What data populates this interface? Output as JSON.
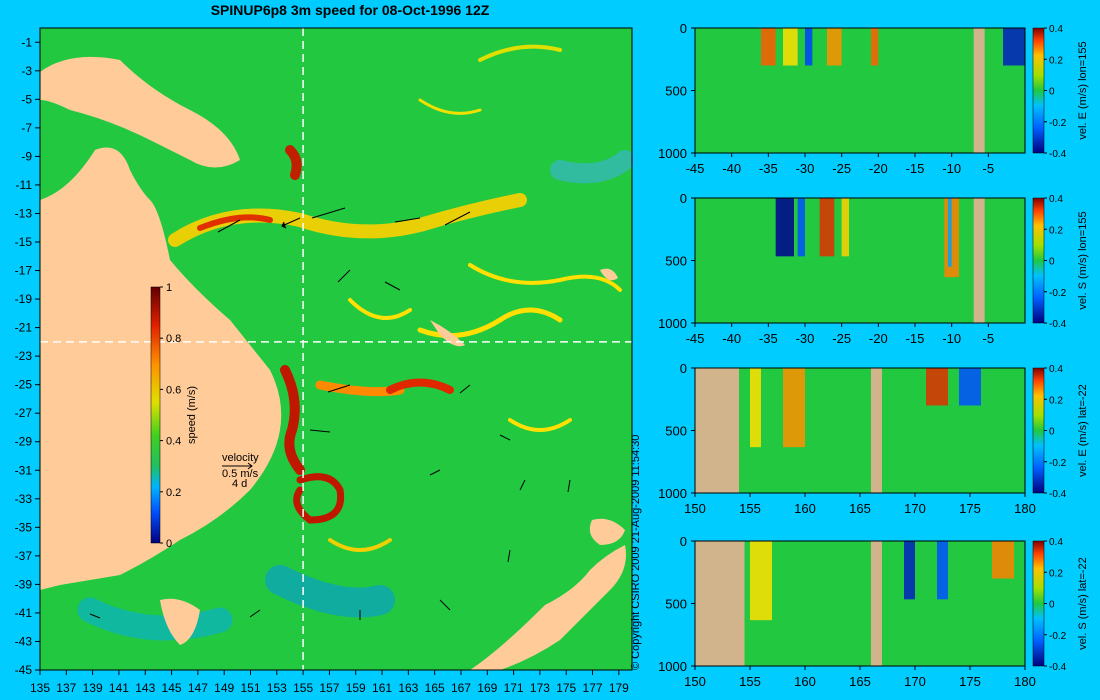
{
  "title": "SPINUP6p8 3m speed for 08-Oct-1996 12Z",
  "copyright": "© Copyright CSIRO 2009   21-Aug-2009 11:54:30",
  "colors": {
    "background": "#00ccff",
    "land": "#ffcc99",
    "section_land": "#d2b48c",
    "ocean_mid": "#22c840",
    "ref_lines": "#ffffff"
  },
  "chart_data": [
    {
      "type": "heatmap",
      "panel": "map",
      "title": "SPINUP6p8 3m speed for 08-Oct-1996 12Z",
      "x_ticks": [
        "135",
        "137",
        "139",
        "141",
        "143",
        "145",
        "147",
        "149",
        "151",
        "153",
        "155",
        "157",
        "159",
        "161",
        "163",
        "165",
        "167",
        "169",
        "171",
        "173",
        "175",
        "177",
        "179"
      ],
      "y_ticks": [
        "-1",
        "-3",
        "-5",
        "-7",
        "-9",
        "-11",
        "-13",
        "-15",
        "-17",
        "-19",
        "-21",
        "-23",
        "-25",
        "-27",
        "-29",
        "-31",
        "-33",
        "-35",
        "-37",
        "-39",
        "-41",
        "-43",
        "-45"
      ],
      "xlim": [
        135,
        180
      ],
      "ylim": [
        -45,
        0
      ],
      "colorbar": {
        "label": "speed (m/s)",
        "ticks": [
          "1",
          "0.8",
          "0.6",
          "0.4",
          "0.2",
          "0"
        ],
        "range": [
          0,
          1
        ]
      },
      "vector_key": {
        "title": "velocity",
        "speed": "0.5 m/s",
        "time": "4 d"
      },
      "reference_lines": {
        "lon": 155,
        "lat": -22
      }
    },
    {
      "type": "heatmap",
      "panel": "section",
      "x_ticks": [
        "-45",
        "-40",
        "-35",
        "-30",
        "-25",
        "-20",
        "-15",
        "-10",
        "-5"
      ],
      "xlim": [
        -45,
        0
      ],
      "y_ticks": [
        "0",
        "500",
        "1000"
      ],
      "ylim": [
        0,
        1000
      ],
      "colorbar": {
        "label": "vel. E (m/s) lon=155",
        "ticks": [
          "0.4",
          "0.2",
          "0",
          "-0.2",
          "-0.4"
        ],
        "range": [
          -0.4,
          0.4
        ]
      }
    },
    {
      "type": "heatmap",
      "panel": "section",
      "x_ticks": [
        "-45",
        "-40",
        "-35",
        "-30",
        "-25",
        "-20",
        "-15",
        "-10",
        "-5"
      ],
      "xlim": [
        -45,
        0
      ],
      "y_ticks": [
        "0",
        "500",
        "1000"
      ],
      "ylim": [
        0,
        1000
      ],
      "colorbar": {
        "label": "vel. S (m/s) lon=155",
        "ticks": [
          "0.4",
          "0.2",
          "0",
          "-0.2",
          "-0.4"
        ],
        "range": [
          -0.4,
          0.4
        ]
      }
    },
    {
      "type": "heatmap",
      "panel": "section",
      "x_ticks": [
        "150",
        "155",
        "160",
        "165",
        "170",
        "175",
        "180"
      ],
      "xlim": [
        150,
        180
      ],
      "y_ticks": [
        "0",
        "500",
        "1000"
      ],
      "ylim": [
        0,
        1000
      ],
      "colorbar": {
        "label": "vel. E (m/s) lat=-22",
        "ticks": [
          "0.4",
          "0.2",
          "0",
          "-0.2",
          "-0.4"
        ],
        "range": [
          -0.4,
          0.4
        ]
      }
    },
    {
      "type": "heatmap",
      "panel": "section",
      "x_ticks": [
        "150",
        "155",
        "160",
        "165",
        "170",
        "175",
        "180"
      ],
      "xlim": [
        150,
        180
      ],
      "y_ticks": [
        "0",
        "500",
        "1000"
      ],
      "ylim": [
        0,
        1000
      ],
      "colorbar": {
        "label": "vel. S (m/s) lat=-22",
        "ticks": [
          "0.4",
          "0.2",
          "0",
          "-0.2",
          "-0.4"
        ],
        "range": [
          -0.4,
          0.4
        ]
      }
    }
  ]
}
